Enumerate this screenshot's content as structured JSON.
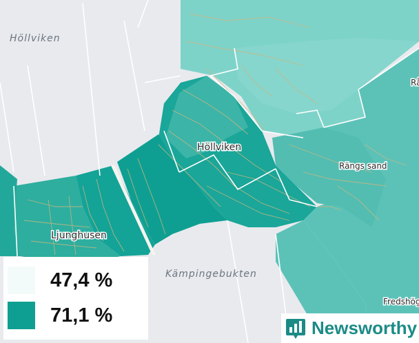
{
  "map": {
    "colors": {
      "land_light": "#7ed3c9",
      "land_mid": "#5cc2b8",
      "land_pale": "#86d6cd",
      "land_dark": "#0f9f92",
      "land_darker": "#14a397",
      "water": "#e8eaee",
      "roads": "#c9b77f",
      "borders": "#ffffff"
    },
    "water_labels": [
      "Höllviken",
      "Kämpingebukten"
    ],
    "places": [
      "Höllviken",
      "Rängs sand",
      "Ljunghusen",
      "Fredshög",
      "Rå"
    ]
  },
  "legend": {
    "items": [
      {
        "value": "47,4 %",
        "color": "#f3fbfa"
      },
      {
        "value": "71,1 %",
        "color": "#0f9f92"
      }
    ]
  },
  "brand": {
    "name": "Newsworthy",
    "color": "#1c8b86",
    "icon": "bar-chart-badge-icon"
  }
}
